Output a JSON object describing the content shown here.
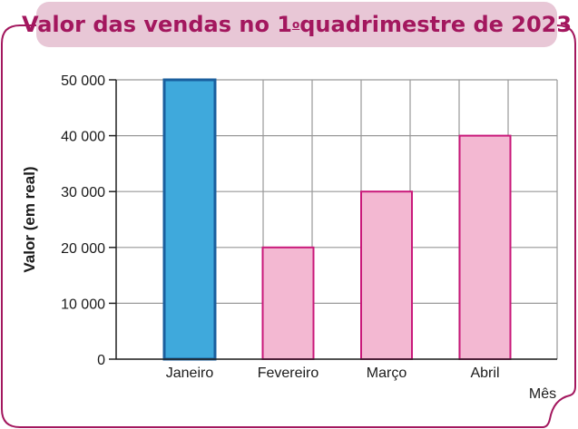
{
  "colors": {
    "frame": "#a3175e",
    "title_bg": "#e8c7d6",
    "title_text": "#a3175e",
    "highlight_bar": "#3fa9dc",
    "highlight_bar_border": "#1a5f9e",
    "bar": "#f3b8d2",
    "bar_border": "#c9197a",
    "grid": "#999999"
  },
  "title": {
    "prefix": "Valor das vendas no 1",
    "ordinal": "o",
    "suffix": " quadrimestre de 2023"
  },
  "chart_data": {
    "type": "bar",
    "title": "Valor das vendas no 1º quadrimestre de 2023",
    "categories": [
      "Janeiro",
      "Fevereiro",
      "Março",
      "Abril"
    ],
    "values": [
      50000,
      20000,
      30000,
      40000
    ],
    "highlight_index": 0,
    "xlabel": "Mês",
    "ylabel": "Valor (em real)",
    "ylim": [
      0,
      50000
    ],
    "yticks": [
      0,
      10000,
      20000,
      30000,
      40000,
      50000
    ],
    "ytick_labels": [
      "0",
      "10 000",
      "20 000",
      "30 000",
      "40 000",
      "50 000"
    ],
    "grid": true
  }
}
